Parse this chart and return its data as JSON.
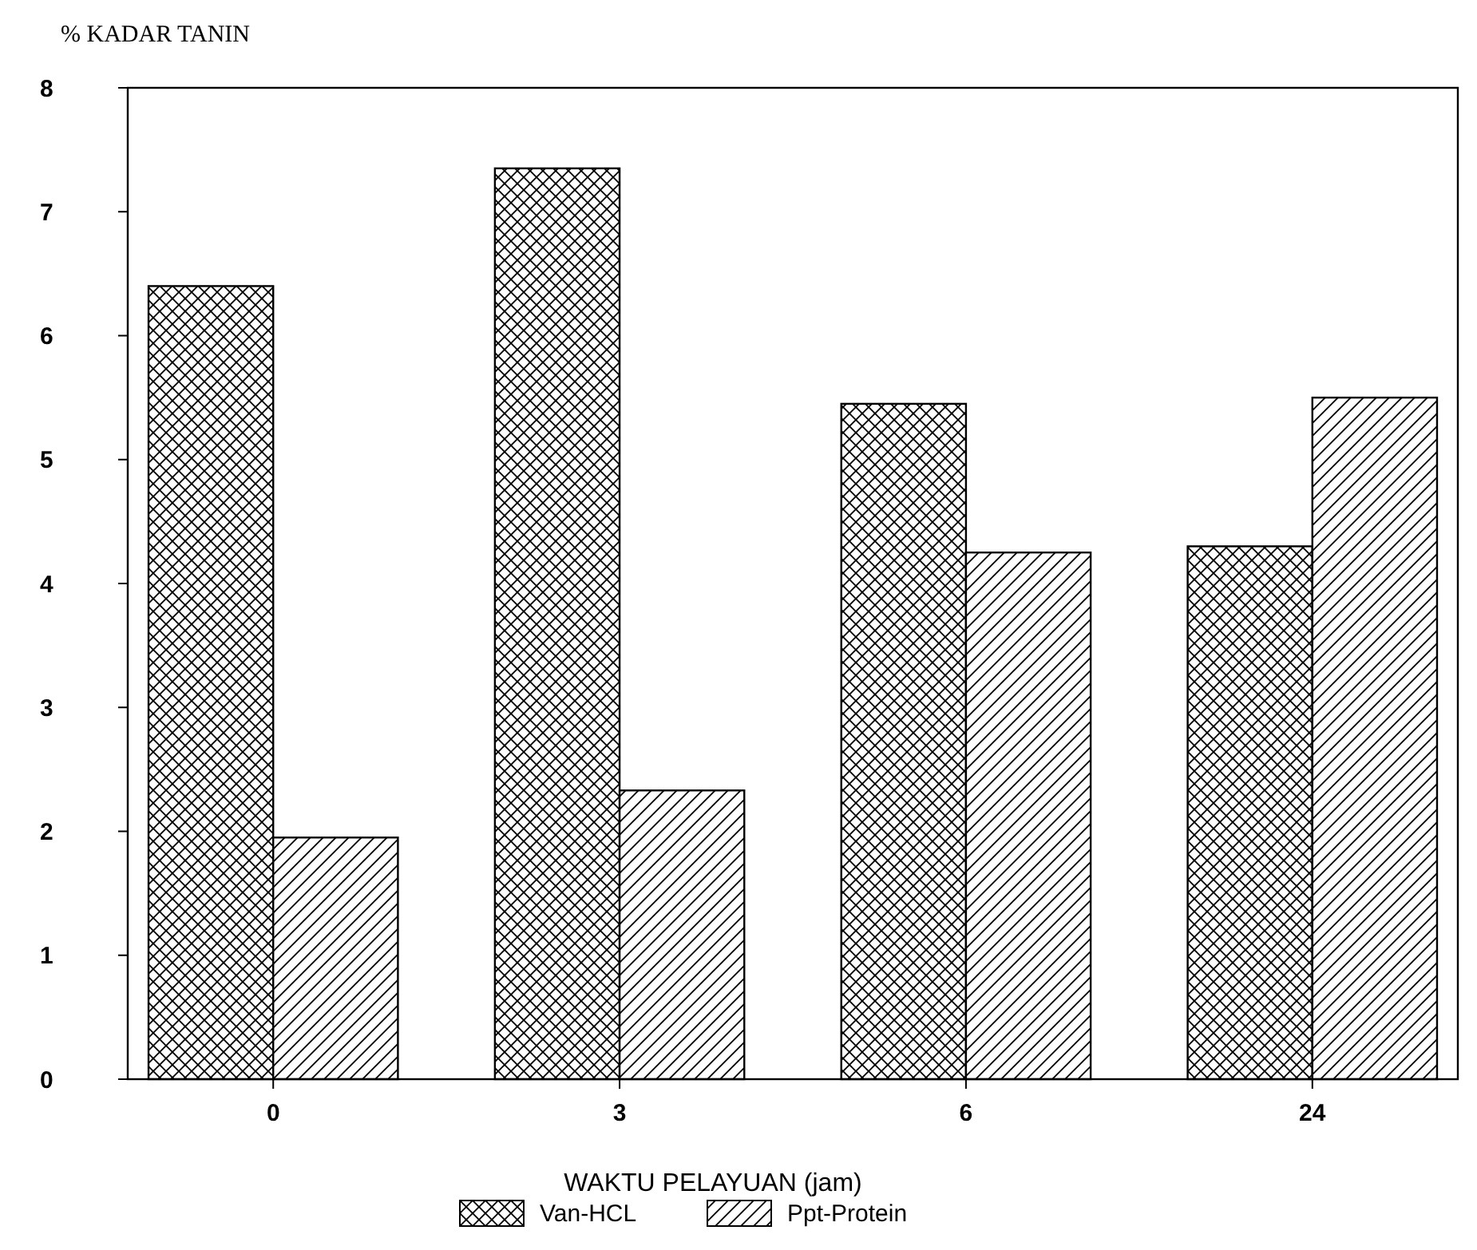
{
  "chart_data": {
    "type": "bar",
    "title": "% KADAR TANIN",
    "xlabel": "WAKTU PELAYUAN (jam)",
    "categories": [
      "0",
      "3",
      "6",
      "24"
    ],
    "series": [
      {
        "name": "Van-HCL",
        "color": "#000000",
        "values": [
          6.4,
          7.35,
          5.45,
          4.3
        ]
      },
      {
        "name": "Ppt-Protein",
        "color": "#000000",
        "values": [
          1.95,
          2.33,
          4.25,
          5.5
        ]
      }
    ],
    "ylim": [
      0,
      8
    ],
    "yticks": [
      0,
      1,
      2,
      3,
      4,
      5,
      6,
      7,
      8
    ],
    "grid": false,
    "legend": "bottom"
  }
}
